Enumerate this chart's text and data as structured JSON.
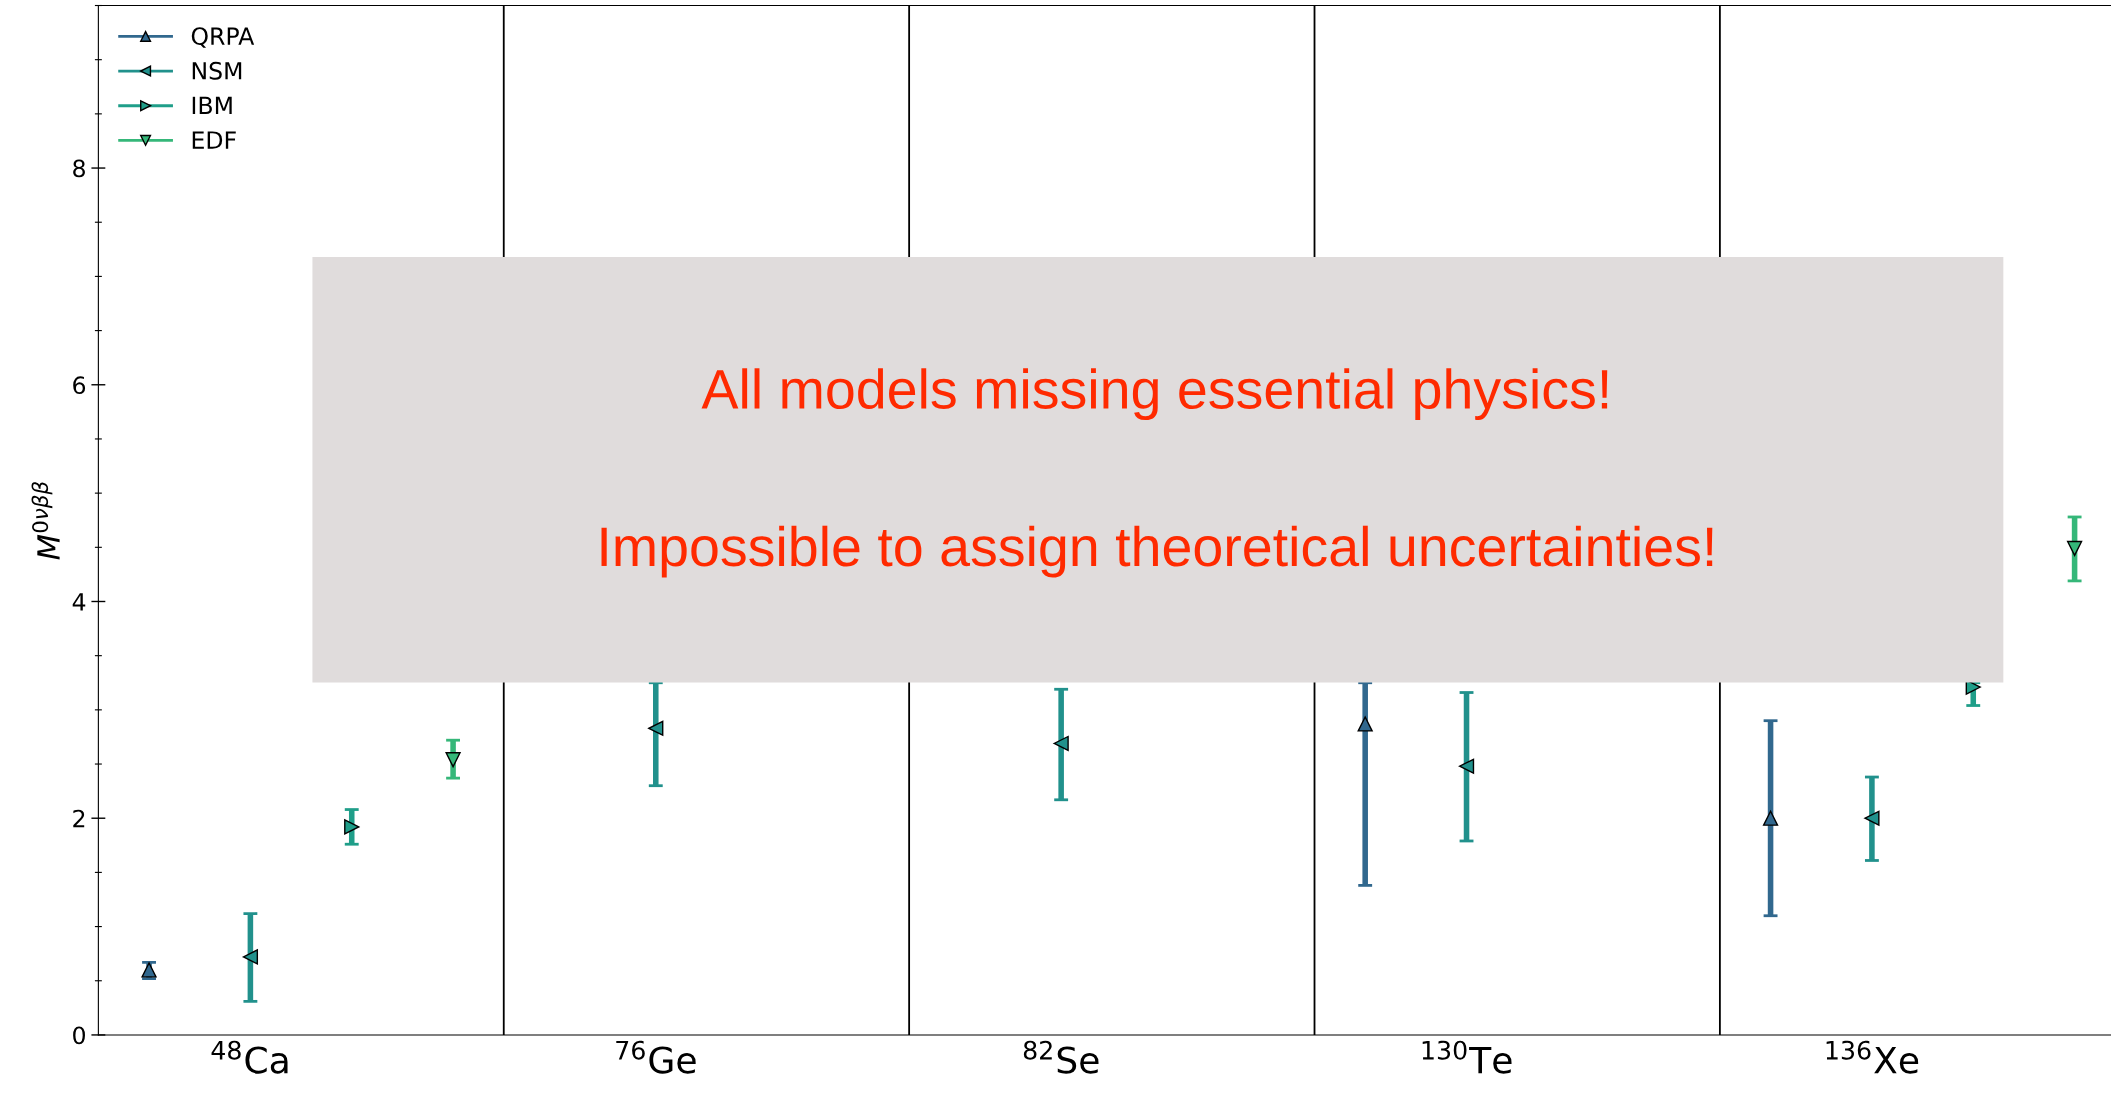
{
  "chart_data": {
    "type": "scatter",
    "ylabel": "M$^{0νββ}$",
    "categories": [
      null,
      "$^{48}$Ca",
      null,
      null,
      null,
      "$^{76}$Ge",
      null,
      null,
      null,
      "$^{82}$Se",
      null,
      null,
      null,
      "$^{130}$Te",
      null,
      null,
      null,
      "$^{136}$Xe",
      null,
      null
    ],
    "ylim": [
      0,
      9.5
    ],
    "yticks": [
      0,
      2,
      4,
      6,
      8
    ],
    "legend": "top left",
    "grid": "x",
    "marker": "triangle",
    "annotations": [
      "All models missing essential physics!",
      "Impossible to assign theoretical uncertainties!"
    ],
    "series": [
      {
        "name": "QRPA",
        "color": "#31688e",
        "values": [
          0.6,
          null,
          null,
          null,
          null,
          null,
          null,
          null,
          null,
          null,
          null,
          null,
          2.87,
          null,
          null,
          null,
          2.0,
          null,
          null,
          null
        ],
        "errors": [
          [
            0.52,
            0.67
          ],
          null,
          null,
          null,
          null,
          null,
          null,
          null,
          null,
          null,
          null,
          null,
          [
            1.38,
            3.25
          ],
          null,
          null,
          null,
          [
            1.1,
            2.9
          ],
          null,
          null,
          null
        ]
      },
      {
        "name": "NSM",
        "color": "#21918c",
        "values": [
          null,
          0.72,
          null,
          null,
          null,
          2.83,
          null,
          null,
          null,
          2.69,
          null,
          null,
          null,
          2.48,
          null,
          null,
          null,
          2.0,
          null,
          null
        ],
        "errors": [
          null,
          [
            0.31,
            1.12
          ],
          null,
          null,
          null,
          [
            2.3,
            3.25
          ],
          null,
          null,
          null,
          [
            2.17,
            3.19
          ],
          null,
          null,
          null,
          [
            1.79,
            3.16
          ],
          null,
          null,
          null,
          [
            1.61,
            2.38
          ],
          null,
          null
        ]
      },
      {
        "name": "IBM",
        "color": "#1f9e89",
        "values": [
          null,
          null,
          1.92,
          null,
          null,
          null,
          null,
          null,
          null,
          null,
          null,
          null,
          null,
          null,
          null,
          null,
          null,
          null,
          3.21,
          null
        ],
        "errors": [
          null,
          null,
          [
            1.76,
            2.08
          ],
          null,
          null,
          null,
          null,
          null,
          null,
          null,
          null,
          null,
          null,
          null,
          null,
          null,
          null,
          null,
          [
            3.04,
            3.25
          ],
          null
        ]
      },
      {
        "name": "EDF",
        "color": "#35b779",
        "values": [
          null,
          null,
          null,
          2.54,
          null,
          null,
          null,
          null,
          null,
          null,
          null,
          null,
          null,
          null,
          null,
          null,
          null,
          null,
          null,
          4.49
        ],
        "errors": [
          null,
          null,
          null,
          [
            2.37,
            2.72
          ],
          null,
          null,
          null,
          null,
          null,
          null,
          null,
          null,
          null,
          null,
          null,
          null,
          null,
          null,
          null,
          [
            4.19,
            4.78
          ]
        ]
      }
    ]
  }
}
